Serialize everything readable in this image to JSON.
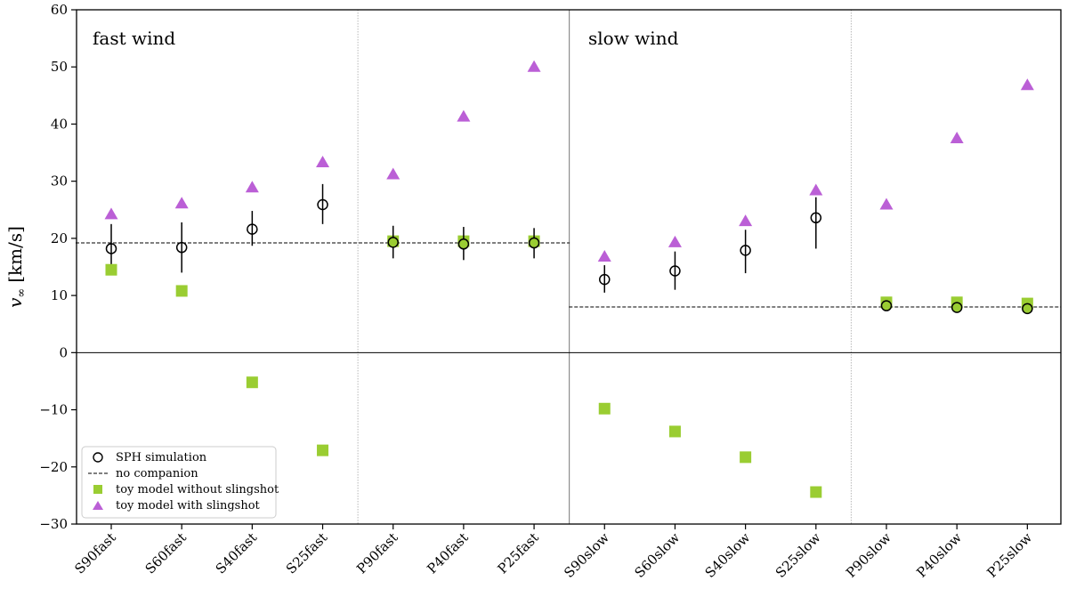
{
  "chart_data": {
    "type": "scatter",
    "title": "",
    "xlabel": "",
    "ylabel": "v",
    "ylabel_subscript": "∞",
    "ylabel_unit": "[km/s]",
    "ylim": [
      -30,
      60
    ],
    "yticks": [
      -30,
      -20,
      -10,
      0,
      10,
      20,
      30,
      40,
      50,
      60
    ],
    "categories": [
      "S90fast",
      "S60fast",
      "S40fast",
      "S25fast",
      "P90fast",
      "P40fast",
      "P25fast",
      "S90slow",
      "S60slow",
      "S40slow",
      "S25slow",
      "P90slow",
      "P40slow",
      "P25slow"
    ],
    "panel_labels": [
      "fast wind",
      "slow wind"
    ],
    "no_companion": [
      {
        "value": 19.2,
        "from": 0,
        "to": 6
      },
      {
        "value": 8.0,
        "from": 7,
        "to": 13
      }
    ],
    "series": [
      {
        "name": "SPH simulation",
        "marker": "circle",
        "values": [
          18.2,
          18.4,
          21.6,
          25.9,
          19.3,
          19.0,
          19.2,
          12.8,
          14.3,
          17.9,
          23.6,
          8.2,
          7.9,
          7.7
        ],
        "errors": [
          [
            15.5,
            22.5
          ],
          [
            14.0,
            22.8
          ],
          [
            18.7,
            24.8
          ],
          [
            22.5,
            29.5
          ],
          [
            16.5,
            22.2
          ],
          [
            16.2,
            22.0
          ],
          [
            16.5,
            21.8
          ],
          [
            10.5,
            15.3
          ],
          [
            11.0,
            17.7
          ],
          [
            13.9,
            21.5
          ],
          [
            18.2,
            27.2
          ],
          null,
          null,
          null
        ],
        "color": "#000000"
      },
      {
        "name": "toy model without slingshot",
        "marker": "square",
        "values": [
          14.5,
          10.8,
          -5.2,
          -17.1,
          19.5,
          19.5,
          19.5,
          -9.8,
          -13.8,
          -18.3,
          -24.4,
          8.8,
          8.8,
          8.6
        ],
        "color": "#9acd32"
      },
      {
        "name": "toy model with slingshot",
        "marker": "triangle",
        "values": [
          24.2,
          26.1,
          28.9,
          33.3,
          31.2,
          41.3,
          50.0,
          16.8,
          19.3,
          23.0,
          28.4,
          25.9,
          37.5,
          46.8
        ],
        "color": "#bb5fd6"
      }
    ],
    "legend": {
      "position": "lower-left",
      "entries": [
        "SPH simulation",
        "no companion",
        "toy model without slingshot",
        "toy model with slingshot"
      ]
    }
  }
}
